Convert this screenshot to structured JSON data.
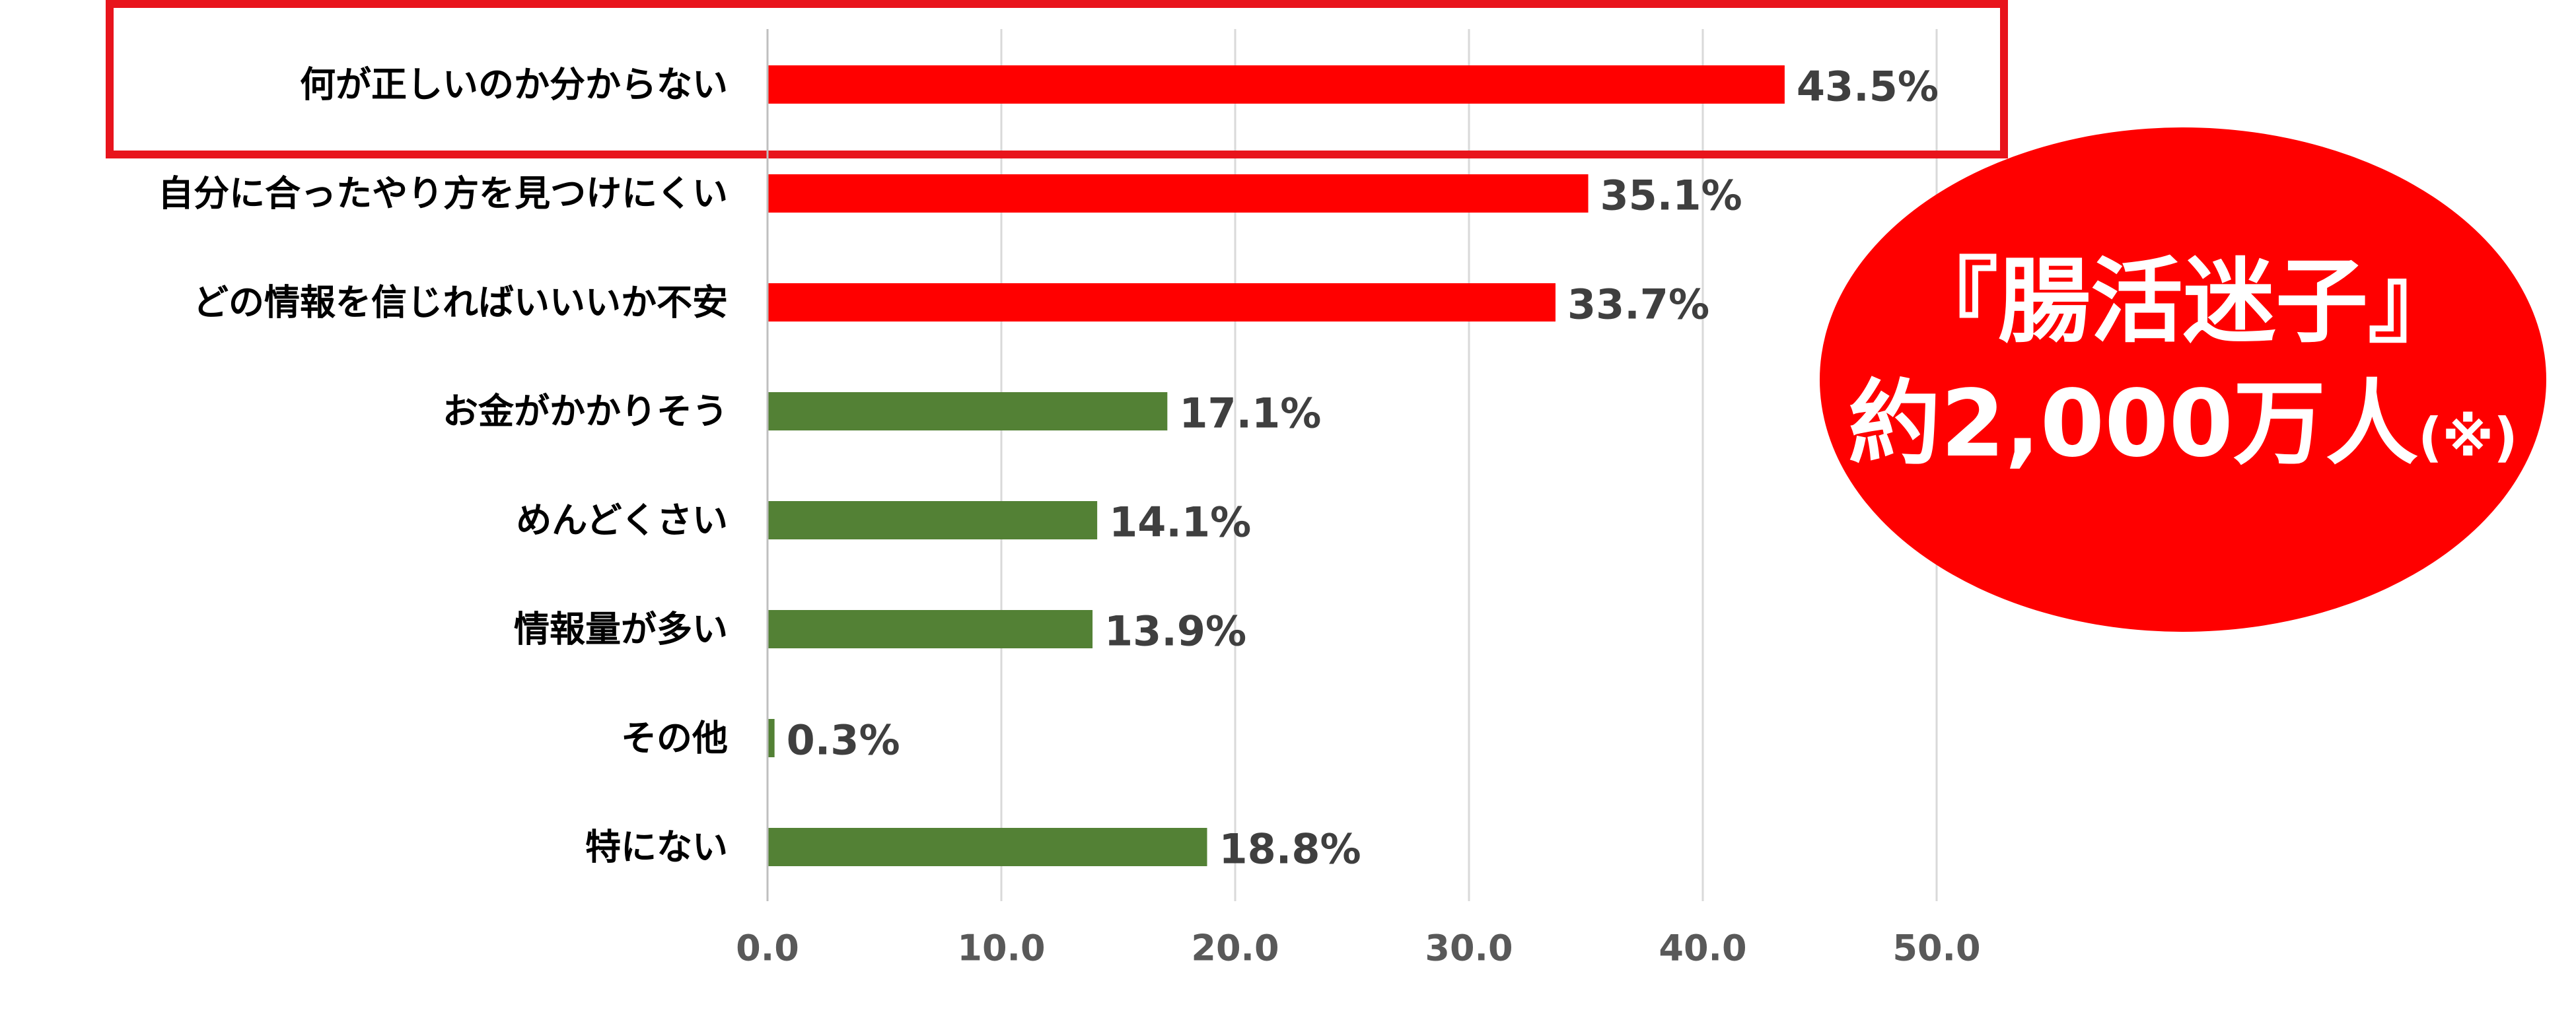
{
  "chart_data": {
    "type": "bar",
    "orientation": "horizontal",
    "categories": [
      "何が正しいのか分からない",
      "自分に合ったやり方を見つけにくい",
      "どの情報を信じればいいいか不安",
      "お金がかかりそう",
      "めんどくさい",
      "情報量が多い",
      "その他",
      "特にない"
    ],
    "values": [
      43.5,
      35.1,
      33.7,
      17.1,
      14.1,
      13.9,
      0.3,
      18.8
    ],
    "value_labels": [
      "43.5%",
      "35.1%",
      "33.7%",
      "17.1%",
      "14.1%",
      "13.9%",
      "0.3%",
      "18.8%"
    ],
    "bar_colors": [
      "#ff0000",
      "#ff0000",
      "#ff0000",
      "#538135",
      "#538135",
      "#538135",
      "#538135",
      "#538135"
    ],
    "highlighted_category": "何が正しいのか分からない",
    "highlight_color": "#e8141c",
    "xlim": [
      0,
      50
    ],
    "x_ticks": [
      "0.0",
      "10.0",
      "20.0",
      "30.0",
      "40.0",
      "50.0"
    ],
    "grid": true,
    "gridline_color": "#d9d9d9",
    "title": "",
    "xlabel": "",
    "ylabel": ""
  },
  "callout": {
    "line1": "『腸活迷子』",
    "line2": "約2,000万人",
    "note": "(※)",
    "fill_color": "#ff0000",
    "text_color": "#ffffff"
  }
}
